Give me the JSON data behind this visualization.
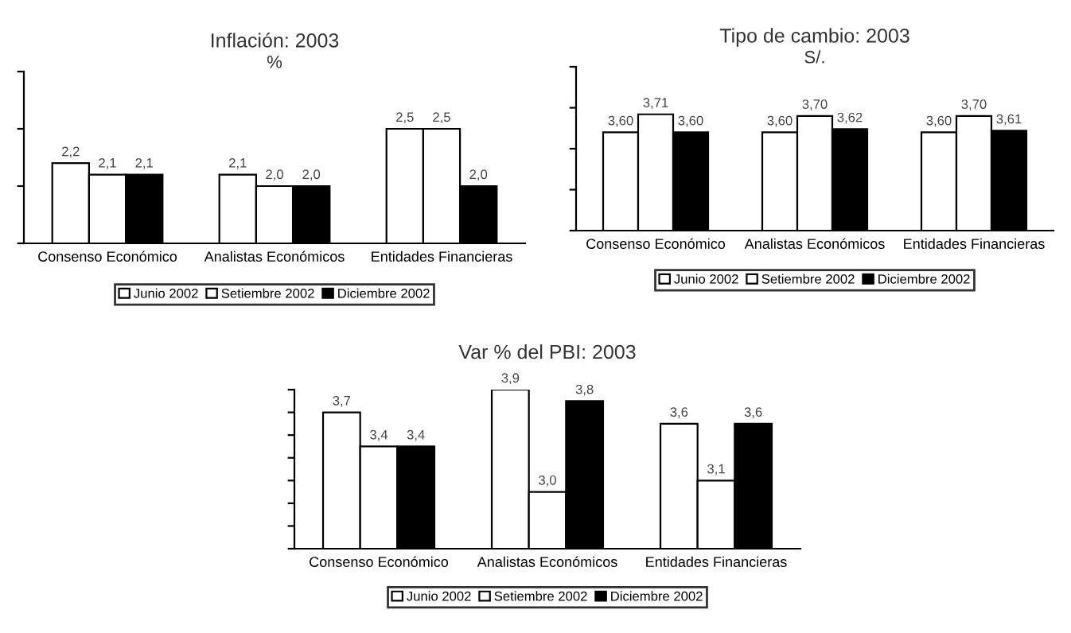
{
  "chart_data": [
    {
      "type": "bar",
      "title": "Inflación: 2003",
      "subtitle": "%",
      "categories": [
        "Consenso Económico",
        "Analistas Económicos",
        "Entidades Financieras"
      ],
      "series": [
        {
          "name": "Junio 2002",
          "color": "#ffffff",
          "values": [
            2.2,
            2.1,
            2.5
          ],
          "value_labels": [
            "2,2",
            "2,1",
            "2,5"
          ]
        },
        {
          "name": "Setiembre 2002",
          "color": "#ffffff",
          "values": [
            2.1,
            2.0,
            2.5
          ],
          "value_labels": [
            "2,1",
            "2,0",
            "2,5"
          ]
        },
        {
          "name": "Diciembre 2002",
          "color": "#000000",
          "values": [
            2.1,
            2.0,
            2.0
          ],
          "value_labels": [
            "2,1",
            "2,0",
            "2,0"
          ]
        }
      ],
      "ylim": [
        1.5,
        3.0
      ],
      "yticks": [
        {
          "value": 1.5,
          "label": null
        },
        {
          "value": 2.0,
          "label": null
        },
        {
          "value": 2.5,
          "label": null
        },
        {
          "value": 3.0,
          "label": null
        }
      ],
      "tick_labels": "x",
      "grid": false,
      "legend": "bottom"
    },
    {
      "type": "bar",
      "title": "Tipo de cambio: 2003",
      "subtitle": "S/.",
      "categories": [
        "Consenso Económico",
        "Analistas Económicos",
        "Entidades Financieras"
      ],
      "series": [
        {
          "name": "Junio 2002",
          "color": "#ffffff",
          "values": [
            3.6,
            3.6,
            3.6
          ],
          "value_labels": [
            "3,60",
            "3,60",
            "3,60"
          ]
        },
        {
          "name": "Setiembre 2002",
          "color": "#ffffff",
          "values": [
            3.71,
            3.7,
            3.7
          ],
          "value_labels": [
            "3,71",
            "3,70",
            "3,70"
          ]
        },
        {
          "name": "Diciembre 2002",
          "color": "#000000",
          "values": [
            3.6,
            3.62,
            3.61
          ],
          "value_labels": [
            "3,60",
            "3,62",
            "3,61"
          ]
        }
      ],
      "ylim": [
        3.0,
        4.0
      ],
      "yticks": [
        {
          "value": 3.0,
          "label": null
        },
        {
          "value": 3.25,
          "label": null
        },
        {
          "value": 3.5,
          "label": null
        },
        {
          "value": 3.75,
          "label": null
        },
        {
          "value": 4.0,
          "label": null
        }
      ],
      "tick_labels": "x",
      "grid": false,
      "legend": "bottom"
    },
    {
      "type": "bar",
      "title": "Var % del PBI: 2003",
      "categories": [
        "Consenso Económico",
        "Analistas Económicos",
        "Entidades Financieras"
      ],
      "series": [
        {
          "name": "Junio 2002",
          "color": "#ffffff",
          "values": [
            3.7,
            3.9,
            3.6
          ],
          "value_labels": [
            "3,7",
            "3,9",
            "3,6"
          ]
        },
        {
          "name": "Setiembre 2002",
          "color": "#ffffff",
          "values": [
            3.4,
            3.0,
            3.1
          ],
          "value_labels": [
            "3,4",
            "3,0",
            "3,1"
          ]
        },
        {
          "name": "Diciembre 2002",
          "color": "#000000",
          "values": [
            3.4,
            3.8,
            3.6
          ],
          "value_labels": [
            "3,4",
            "3,8",
            "3,6"
          ]
        }
      ],
      "ylim": [
        2.5,
        3.9
      ],
      "yticks": [
        {
          "value": 2.5,
          "label": null
        },
        {
          "value": 2.7,
          "label": null
        },
        {
          "value": 2.9,
          "label": null
        },
        {
          "value": 3.1,
          "label": null
        },
        {
          "value": 3.3,
          "label": null
        },
        {
          "value": 3.5,
          "label": null
        },
        {
          "value": 3.7,
          "label": null
        },
        {
          "value": 3.9,
          "label": null
        }
      ],
      "tick_labels": "x",
      "grid": false,
      "legend": "bottom"
    }
  ]
}
